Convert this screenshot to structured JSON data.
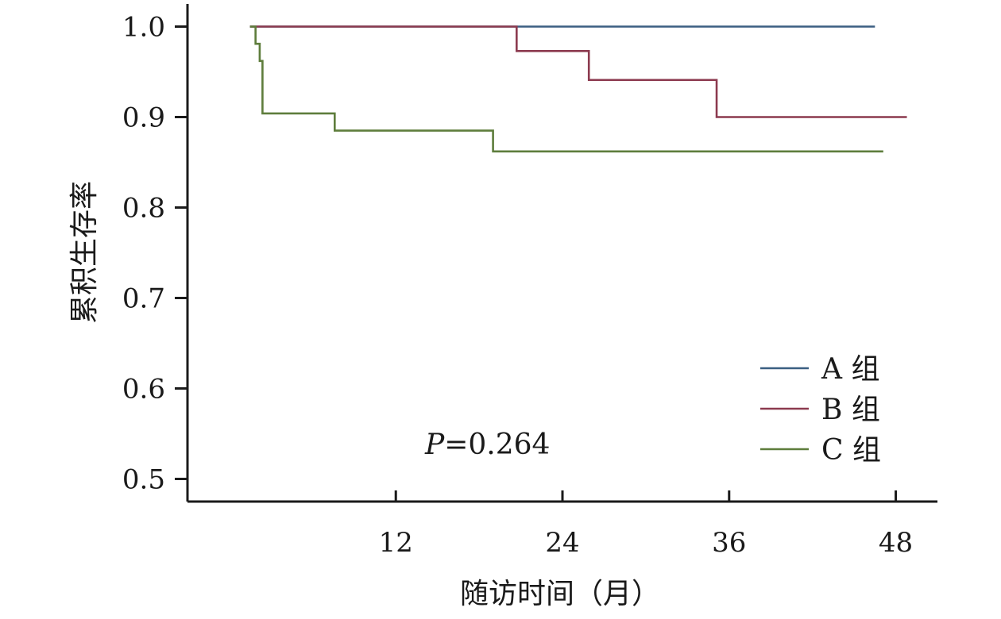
{
  "chart_data": {
    "type": "line",
    "subtype": "kaplan-meier step",
    "title": "",
    "xlabel": "随访时间（月）",
    "ylabel": "累积生存率",
    "xlim": [
      -3,
      51
    ],
    "ylim": [
      0.475,
      1.025
    ],
    "x_ticks": [
      12,
      24,
      36,
      48
    ],
    "x_tick_labels": [
      "12",
      "24",
      "36",
      "48"
    ],
    "y_ticks": [
      0.5,
      0.6,
      0.7,
      0.8,
      0.9,
      1.0
    ],
    "y_tick_labels": [
      "0.5",
      "0.6",
      "0.7",
      "0.8",
      "0.9",
      "1.0"
    ],
    "grid": false,
    "legend_position": "bottom-right",
    "series": [
      {
        "name": "A 组",
        "color": "#3b5f82",
        "steps": [
          [
            1.5,
            1.0
          ],
          [
            46.5,
            1.0
          ]
        ]
      },
      {
        "name": "B 组",
        "color": "#8c3a4f",
        "steps": [
          [
            1.5,
            1.0
          ],
          [
            20.7,
            0.973
          ],
          [
            25.9,
            0.941
          ],
          [
            35.1,
            0.9
          ],
          [
            48.8,
            0.9
          ]
        ]
      },
      {
        "name": "C 组",
        "color": "#5e7d3c",
        "steps": [
          [
            1.5,
            1.0
          ],
          [
            1.9,
            0.981
          ],
          [
            2.2,
            0.962
          ],
          [
            2.4,
            0.904
          ],
          [
            7.6,
            0.885
          ],
          [
            19.0,
            0.862
          ],
          [
            47.1,
            0.862
          ]
        ]
      }
    ],
    "annotation": {
      "p_label": "P",
      "p_value": "=0.264"
    }
  }
}
